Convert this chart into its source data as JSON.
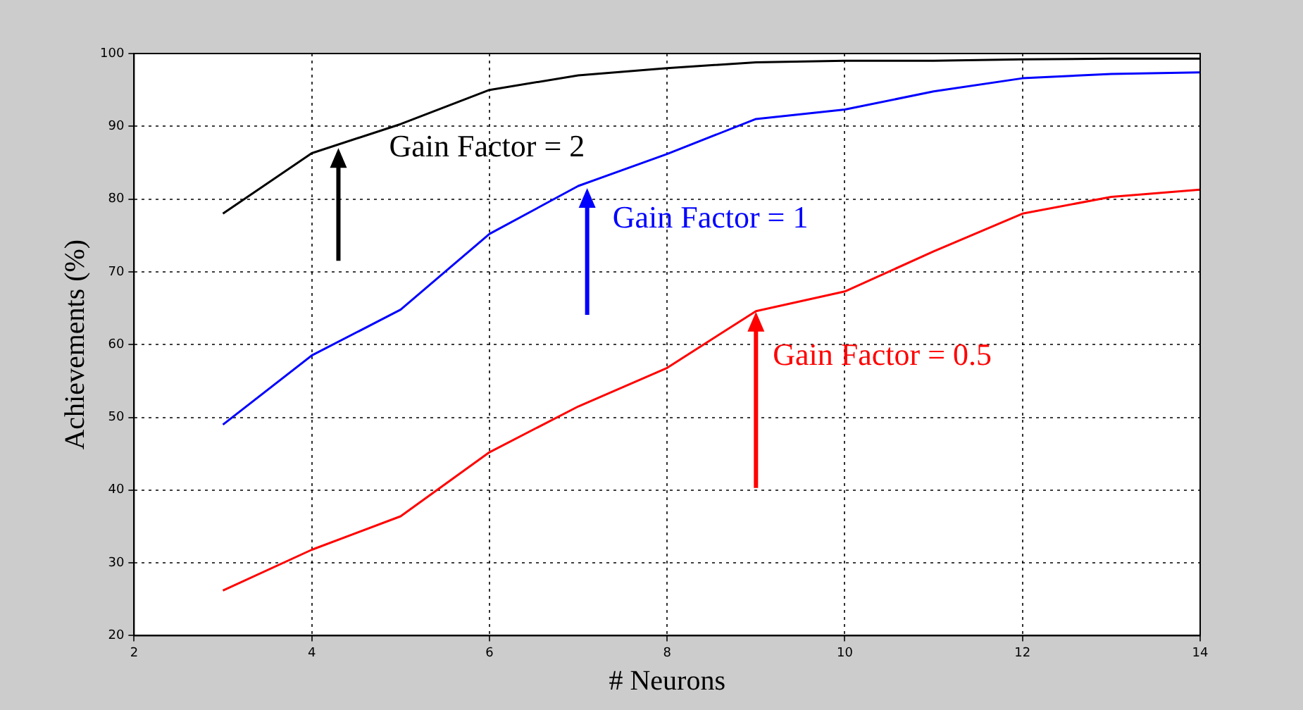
{
  "chart_data": {
    "type": "line",
    "xlabel": "# Neurons",
    "ylabel": "Achievements (%)",
    "xlim": [
      2,
      14
    ],
    "xticks": [
      2,
      4,
      6,
      8,
      10,
      12,
      14
    ],
    "ylim": [
      20,
      100
    ],
    "yticks": [
      20,
      30,
      40,
      50,
      60,
      70,
      80,
      90,
      100
    ],
    "grid": true,
    "line_style": "solid",
    "marker": "none",
    "x": [
      3,
      4,
      5,
      6,
      7,
      8,
      9,
      10,
      11,
      12,
      13,
      14
    ],
    "series": [
      {
        "color": "#000000",
        "values": [
          78,
          86.3,
          90.3,
          95,
          97,
          98,
          98.8,
          99,
          99,
          99.2,
          99.3,
          99.3
        ]
      },
      {
        "color": "#0000ff",
        "values": [
          49,
          58.5,
          64.8,
          75.2,
          81.8,
          86.2,
          91,
          92.3,
          94.8,
          96.6,
          97.2,
          97.4
        ]
      },
      {
        "color": "#ff0000",
        "values": [
          26.2,
          31.8,
          36.4,
          45.2,
          51.5,
          56.8,
          64.6,
          67.3,
          72.8,
          78,
          80.3,
          81.3
        ]
      }
    ],
    "annotations": [
      {
        "text": "Gain Factor = 2",
        "x": 4.3,
        "y": 87
      },
      {
        "text": "Gain Factor = 1",
        "x": 7.1,
        "y": 81.5
      },
      {
        "text": "Gain Factor = 0.5",
        "x": 9,
        "y": 64.5
      }
    ]
  }
}
